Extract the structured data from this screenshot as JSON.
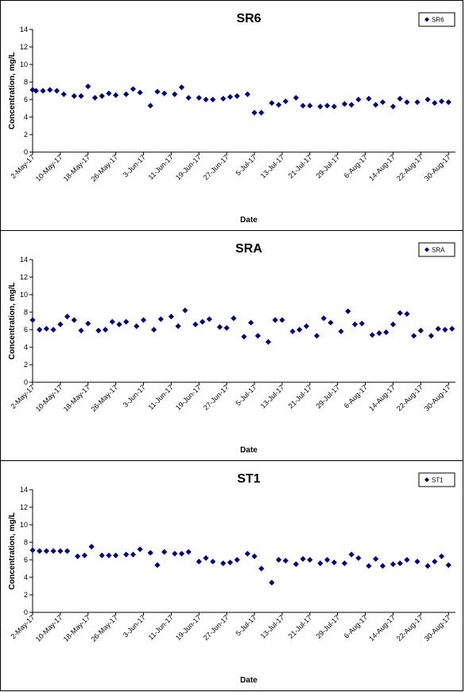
{
  "x_ticks": [
    "2-May-17",
    "10-May-17",
    "18-May-17",
    "26-May-17",
    "3-Jun-17",
    "11-Jun-17",
    "19-Jun-17",
    "27-Jun-17",
    "5-Jul-17",
    "13-Jul-17",
    "21-Jul-17",
    "29-Jul-17",
    "6-Aug-17",
    "14-Aug-17",
    "22-Aug-17",
    "30-Aug-17"
  ],
  "y_ticks": [
    "0",
    "2",
    "4",
    "6",
    "8",
    "10",
    "12",
    "14"
  ],
  "chart_data": [
    {
      "type": "scatter",
      "title": "SR6",
      "xlabel": "Date",
      "ylabel": "Concentration, mg/L",
      "legend": "SR6",
      "legend_position": "top-right",
      "xlim": [
        "2017-05-02",
        "2017-09-01"
      ],
      "ylim": [
        0,
        14
      ],
      "marker_color": "#00007f",
      "x": [
        "2017-05-02",
        "2017-05-03",
        "2017-05-05",
        "2017-05-07",
        "2017-05-09",
        "2017-05-11",
        "2017-05-14",
        "2017-05-16",
        "2017-05-18",
        "2017-05-20",
        "2017-05-22",
        "2017-05-24",
        "2017-05-26",
        "2017-05-29",
        "2017-05-31",
        "2017-06-02",
        "2017-06-05",
        "2017-06-07",
        "2017-06-09",
        "2017-06-12",
        "2017-06-14",
        "2017-06-16",
        "2017-06-19",
        "2017-06-21",
        "2017-06-23",
        "2017-06-26",
        "2017-06-28",
        "2017-06-30",
        "2017-07-03",
        "2017-07-05",
        "2017-07-07",
        "2017-07-10",
        "2017-07-12",
        "2017-07-14",
        "2017-07-17",
        "2017-07-19",
        "2017-07-21",
        "2017-07-24",
        "2017-07-26",
        "2017-07-28",
        "2017-07-31",
        "2017-08-02",
        "2017-08-04",
        "2017-08-07",
        "2017-08-09",
        "2017-08-11",
        "2017-08-14",
        "2017-08-16",
        "2017-08-18",
        "2017-08-21",
        "2017-08-24",
        "2017-08-26",
        "2017-08-28",
        "2017-08-30"
      ],
      "y": [
        7.1,
        7.0,
        7.0,
        7.1,
        7.0,
        6.6,
        6.4,
        6.4,
        7.5,
        6.2,
        6.4,
        6.7,
        6.5,
        6.6,
        7.2,
        6.8,
        5.3,
        6.9,
        6.7,
        6.6,
        7.4,
        6.2,
        6.2,
        6.0,
        6.0,
        6.1,
        6.3,
        6.4,
        6.6,
        4.5,
        4.5,
        5.6,
        5.4,
        5.8,
        6.2,
        5.3,
        5.3,
        5.2,
        5.3,
        5.2,
        5.5,
        5.4,
        6.0,
        6.1,
        5.4,
        5.7,
        5.2,
        6.1,
        5.7,
        5.7,
        6.0,
        5.6,
        5.8,
        5.7
      ]
    },
    {
      "type": "scatter",
      "title": "SRA",
      "xlabel": "Date",
      "ylabel": "Concentration, mg/L",
      "legend": "SRA",
      "legend_position": "top-right",
      "xlim": [
        "2017-05-02",
        "2017-09-01"
      ],
      "ylim": [
        0,
        14
      ],
      "marker_color": "#00007f",
      "x": [
        "2017-05-02",
        "2017-05-04",
        "2017-05-06",
        "2017-05-08",
        "2017-05-10",
        "2017-05-12",
        "2017-05-14",
        "2017-05-16",
        "2017-05-18",
        "2017-05-21",
        "2017-05-23",
        "2017-05-25",
        "2017-05-27",
        "2017-05-29",
        "2017-06-01",
        "2017-06-03",
        "2017-06-06",
        "2017-06-08",
        "2017-06-11",
        "2017-06-13",
        "2017-06-15",
        "2017-06-18",
        "2017-06-20",
        "2017-06-22",
        "2017-06-25",
        "2017-06-27",
        "2017-06-29",
        "2017-07-02",
        "2017-07-04",
        "2017-07-06",
        "2017-07-09",
        "2017-07-11",
        "2017-07-13",
        "2017-07-16",
        "2017-07-18",
        "2017-07-20",
        "2017-07-23",
        "2017-07-25",
        "2017-07-27",
        "2017-07-30",
        "2017-08-01",
        "2017-08-03",
        "2017-08-05",
        "2017-08-08",
        "2017-08-10",
        "2017-08-12",
        "2017-08-14",
        "2017-08-16",
        "2017-08-18",
        "2017-08-20",
        "2017-08-22",
        "2017-08-25",
        "2017-08-27",
        "2017-08-29",
        "2017-08-31"
      ],
      "y": [
        7.1,
        6.0,
        6.1,
        6.0,
        6.6,
        7.5,
        7.1,
        5.9,
        6.7,
        5.9,
        6.0,
        6.9,
        6.6,
        6.9,
        6.4,
        7.1,
        6.0,
        7.2,
        7.5,
        6.4,
        8.2,
        6.6,
        6.9,
        7.2,
        6.3,
        6.2,
        7.3,
        5.2,
        6.8,
        5.3,
        4.6,
        7.1,
        7.1,
        5.8,
        6.0,
        6.4,
        5.3,
        7.3,
        6.8,
        5.8,
        8.1,
        6.6,
        6.7,
        5.4,
        5.6,
        5.7,
        6.6,
        7.9,
        7.8,
        5.3,
        5.9,
        5.3,
        6.1,
        6.0,
        6.1
      ]
    },
    {
      "type": "scatter",
      "title": "ST1",
      "xlabel": "Date",
      "ylabel": "Concentration, mg/L",
      "legend": "ST1",
      "legend_position": "top-right",
      "xlim": [
        "2017-05-02",
        "2017-09-01"
      ],
      "ylim": [
        0,
        14
      ],
      "marker_color": "#00007f",
      "x": [
        "2017-05-02",
        "2017-05-04",
        "2017-05-06",
        "2017-05-08",
        "2017-05-10",
        "2017-05-12",
        "2017-05-15",
        "2017-05-17",
        "2017-05-19",
        "2017-05-22",
        "2017-05-24",
        "2017-05-26",
        "2017-05-29",
        "2017-05-31",
        "2017-06-02",
        "2017-06-05",
        "2017-06-07",
        "2017-06-09",
        "2017-06-12",
        "2017-06-14",
        "2017-06-16",
        "2017-06-19",
        "2017-06-21",
        "2017-06-23",
        "2017-06-26",
        "2017-06-28",
        "2017-06-30",
        "2017-07-03",
        "2017-07-05",
        "2017-07-07",
        "2017-07-10",
        "2017-07-12",
        "2017-07-14",
        "2017-07-17",
        "2017-07-19",
        "2017-07-21",
        "2017-07-24",
        "2017-07-26",
        "2017-07-28",
        "2017-07-31",
        "2017-08-02",
        "2017-08-04",
        "2017-08-07",
        "2017-08-09",
        "2017-08-11",
        "2017-08-14",
        "2017-08-16",
        "2017-08-18",
        "2017-08-21",
        "2017-08-24",
        "2017-08-26",
        "2017-08-28",
        "2017-08-30"
      ],
      "y": [
        7.1,
        7.0,
        7.0,
        7.0,
        7.0,
        7.0,
        6.4,
        6.5,
        7.5,
        6.5,
        6.5,
        6.5,
        6.6,
        6.6,
        7.2,
        6.8,
        5.4,
        6.9,
        6.7,
        6.7,
        6.9,
        5.8,
        6.2,
        5.8,
        5.6,
        5.7,
        6.0,
        6.7,
        6.4,
        5.0,
        3.4,
        6.0,
        5.9,
        5.5,
        6.1,
        6.0,
        5.6,
        6.0,
        5.7,
        5.6,
        6.6,
        6.2,
        5.3,
        6.1,
        5.3,
        5.5,
        5.6,
        6.0,
        5.8,
        5.3,
        5.8,
        6.4,
        5.4
      ]
    }
  ]
}
